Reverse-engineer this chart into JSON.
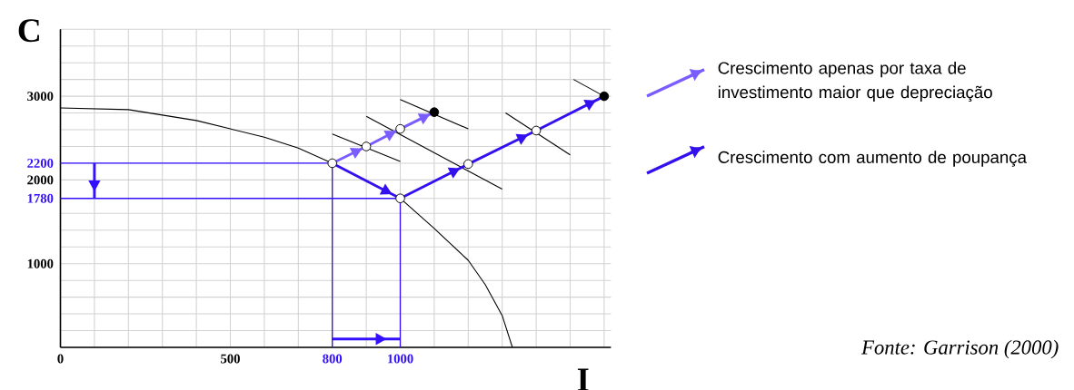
{
  "chart_data": {
    "type": "line",
    "xlabel": "I",
    "ylabel": "C",
    "xlim": [
      0,
      1620
    ],
    "ylim": [
      0,
      3800
    ],
    "xticks": [
      0,
      {
        "value": 100,
        "label": null
      },
      {
        "value": 200,
        "label": null
      },
      {
        "value": 300,
        "label": null
      },
      {
        "value": 400,
        "label": null
      },
      500,
      {
        "value": 600,
        "label": null
      },
      {
        "value": 700,
        "label": null
      },
      800,
      {
        "value": 900,
        "label": null
      },
      1000,
      {
        "value": 1100,
        "label": null
      },
      {
        "value": 1200,
        "label": null
      },
      {
        "value": 1300,
        "label": null
      },
      {
        "value": 1400,
        "label": null
      },
      {
        "value": 1500,
        "label": null
      },
      {
        "value": 1600,
        "label": null
      }
    ],
    "yticks": [
      {
        "value": 0,
        "label": null
      },
      {
        "value": 200,
        "label": null
      },
      {
        "value": 400,
        "label": null
      },
      {
        "value": 600,
        "label": null
      },
      {
        "value": 800,
        "label": null
      },
      1000,
      {
        "value": 1200,
        "label": null
      },
      {
        "value": 1400,
        "label": null
      },
      {
        "value": 1600,
        "label": null
      },
      1780,
      2000,
      2200,
      {
        "value": 2400,
        "label": null
      },
      {
        "value": 2600,
        "label": null
      },
      {
        "value": 2800,
        "label": null
      },
      3000,
      {
        "value": 3200,
        "label": null
      },
      {
        "value": 3400,
        "label": null
      },
      {
        "value": 3600,
        "label": null
      },
      {
        "value": 3800,
        "label": null
      }
    ],
    "grid": true,
    "legend": "right",
    "annotations": [
      "Fonte: Garrison (2000)"
    ],
    "series": [
      {
        "color": "#000000",
        "x": [
          0,
          200,
          400,
          500,
          600,
          700,
          800,
          1000,
          1100,
          1200,
          1250,
          1300,
          1330
        ],
        "values": [
          2860,
          2840,
          2710,
          2610,
          2510,
          2380,
          2200,
          1780,
          1420,
          1040,
          750,
          380,
          0
        ]
      },
      {
        "color": "#000000",
        "x": [
          800,
          1000
        ],
        "values": [
          2550,
          2220
        ]
      },
      {
        "color": "#000000",
        "x": [
          900,
          1300
        ],
        "values": [
          2760,
          1890
        ]
      },
      {
        "color": "#000000",
        "x": [
          1000,
          1200
        ],
        "values": [
          2960,
          2610
        ]
      },
      {
        "color": "#000000",
        "x": [
          1310,
          1500
        ],
        "values": [
          2800,
          2300
        ]
      },
      {
        "color": "#000000",
        "x": [
          1510,
          1600
        ],
        "values": [
          3200,
          3000
        ]
      },
      {
        "color": "#3311ff",
        "x": [
          0,
          800
        ],
        "values": [
          2200,
          2200
        ]
      },
      {
        "color": "#3311ff",
        "x": [
          0,
          1000
        ],
        "values": [
          1780,
          1780
        ]
      },
      {
        "color": "#3311ff",
        "x": [
          800,
          800
        ],
        "values": [
          0,
          2200
        ]
      },
      {
        "color": "#3311ff",
        "x": [
          1000,
          1000
        ],
        "values": [
          0,
          1780
        ]
      },
      {
        "color": "#3311ff",
        "x": [
          100,
          100
        ],
        "values": [
          2200,
          1780
        ]
      },
      {
        "color": "#3311ff",
        "x": [
          800,
          1000
        ],
        "values": [
          100,
          100
        ]
      },
      {
        "name": "Crescimento apenas por taxa de investimento maior que depreciação",
        "color": "#7a5cff",
        "x": [
          800,
          900,
          1000,
          1100
        ],
        "values": [
          2200,
          2400,
          2610,
          2810
        ]
      },
      {
        "name": "Crescimento com aumento de poupança",
        "color": "#3311ee",
        "x": [
          800,
          1000,
          1200,
          1400,
          1600
        ],
        "values": [
          2200,
          1780,
          2190,
          2590,
          3000
        ]
      },
      {
        "type": "scatter",
        "color": "#ffffff",
        "marker": "circle",
        "x": [
          800,
          900,
          1000,
          1000,
          1200,
          1400
        ],
        "values": [
          2200,
          2400,
          2610,
          1780,
          2190,
          2590
        ]
      },
      {
        "type": "scatter",
        "color": "#000000",
        "marker": "circle",
        "x": [
          1100,
          1600
        ],
        "values": [
          2810,
          3000
        ]
      }
    ]
  }
}
